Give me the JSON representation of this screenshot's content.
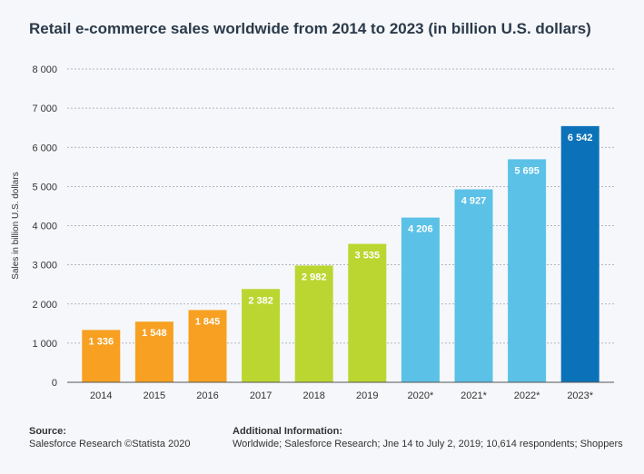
{
  "chart_data": {
    "type": "bar",
    "title": "Retail e-commerce sales worldwide from 2014 to 2023 (in billion U.S. dollars)",
    "xlabel": "",
    "ylabel": "Sales in billion U.S. dollars",
    "ylim": [
      0,
      8000
    ],
    "yticks": [
      0,
      1000,
      2000,
      3000,
      4000,
      5000,
      6000,
      7000,
      8000
    ],
    "ytick_labels": [
      "0",
      "1 000",
      "2 000",
      "3 000",
      "4 000",
      "5 000",
      "6 000",
      "7 000",
      "8 000"
    ],
    "categories": [
      "2014",
      "2015",
      "2016",
      "2017",
      "2018",
      "2019",
      "2020*",
      "2021*",
      "2022*",
      "2023*"
    ],
    "values": [
      1336,
      1548,
      1845,
      2382,
      2982,
      3535,
      4206,
      4927,
      5695,
      6542
    ],
    "value_labels": [
      "1 336",
      "1 548",
      "1 845",
      "2 382",
      "2 982",
      "3 535",
      "4 206",
      "4 927",
      "5 695",
      "6 542"
    ],
    "colors": [
      "#f7a021",
      "#f7a021",
      "#f7a021",
      "#bcd631",
      "#bcd631",
      "#bcd631",
      "#5bc1e7",
      "#5bc1e7",
      "#5bc1e7",
      "#0b72b9"
    ],
    "grid": true,
    "legend": "none"
  },
  "footer": {
    "source_heading": "Source:",
    "source_text": "Salesforce Research ©Statista 2020",
    "info_heading": "Additional Information:",
    "info_text": "Worldwide; Salesforce Research; Jne 14 to July 2, 2019; 10,614 respondents; Shoppers"
  }
}
